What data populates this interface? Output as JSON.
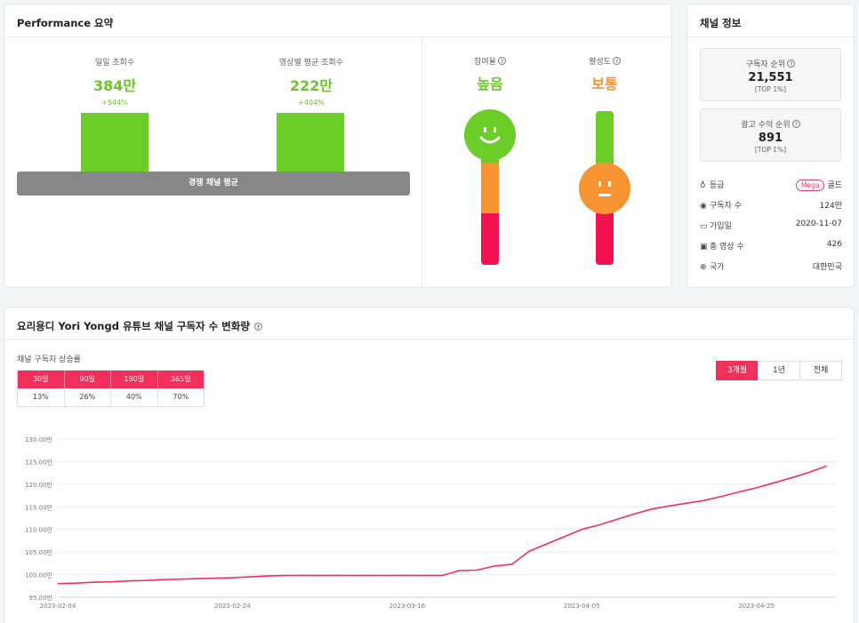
{
  "performance": {
    "title": "Performance 요약",
    "daily_views": {
      "label": "일일 조회수",
      "value": "384만",
      "change": "+544%"
    },
    "avg_views": {
      "label": "영상별 평균 조회수",
      "value": "222만",
      "change": "+404%"
    },
    "baseline_label": "경쟁 채널 평균",
    "engagement": {
      "label": "참여율",
      "value": "높음",
      "level": "high",
      "color": "#6dc42a"
    },
    "activity": {
      "label": "활성도",
      "value": "보통",
      "level": "medium",
      "color": "#f79431"
    },
    "help_icon": "question-circle-icon"
  },
  "channel_info": {
    "title": "채널 정보",
    "subscriber_rank": {
      "label": "구독자 순위",
      "value": "21,551",
      "sub": "[TOP 1%]"
    },
    "ad_rank": {
      "label": "광고 수익 순위",
      "value": "891",
      "sub": "[TOP 1%]"
    },
    "rows": [
      {
        "icon": "medal-icon",
        "label": "등급",
        "badge": "Mega",
        "value": "골드"
      },
      {
        "icon": "user-circle-icon",
        "label": "구독자 수",
        "value": "124만"
      },
      {
        "icon": "calendar-icon",
        "label": "가입일",
        "value": "2020-11-07"
      },
      {
        "icon": "video-library-icon",
        "label": "총 영상 수",
        "value": "426"
      },
      {
        "icon": "globe-icon",
        "label": "국가",
        "value": "대한민국"
      }
    ]
  },
  "growth": {
    "title": "요리용디 Yori Yongd 유튜브 채널 구독자 수 변화량",
    "rate_label": "채널 구독자 상승률",
    "rate_periods": [
      "30일",
      "90일",
      "180일",
      "365일"
    ],
    "rate_values": [
      "13%",
      "26%",
      "40%",
      "70%"
    ],
    "range_buttons": [
      "3개월",
      "1년",
      "전체"
    ],
    "active_range": "3개월"
  },
  "chart_data": {
    "type": "line",
    "title": "",
    "xlabel": "",
    "ylabel": "",
    "ylim": [
      95,
      130
    ],
    "y_ticks": [
      "95.00만",
      "100.00만",
      "105.00만",
      "110.00만",
      "115.00만",
      "120.00만",
      "125.00만",
      "130.00만"
    ],
    "x_ticks": [
      "2023-02-04",
      "2023-02-24",
      "2023-03-16",
      "2023-04-05",
      "2023-04-25"
    ],
    "grid": true,
    "line_color": "#f0305a",
    "x_start": "2023-02-04",
    "x_end": "2023-05-04",
    "series": [
      {
        "x": [
          "2023-02-04",
          "2023-02-06",
          "2023-02-08",
          "2023-02-10",
          "2023-02-12",
          "2023-02-14",
          "2023-02-16",
          "2023-02-18",
          "2023-02-20",
          "2023-02-22",
          "2023-02-24",
          "2023-02-26",
          "2023-02-28",
          "2023-03-02",
          "2023-03-04",
          "2023-03-06",
          "2023-03-08",
          "2023-03-10",
          "2023-03-12",
          "2023-03-14",
          "2023-03-16",
          "2023-03-18",
          "2023-03-20",
          "2023-03-22",
          "2023-03-24",
          "2023-03-26",
          "2023-03-28",
          "2023-03-30",
          "2023-04-01",
          "2023-04-03",
          "2023-04-05",
          "2023-04-07",
          "2023-04-09",
          "2023-04-11",
          "2023-04-13",
          "2023-04-15",
          "2023-04-17",
          "2023-04-19",
          "2023-04-21",
          "2023-04-23",
          "2023-04-25",
          "2023-04-27",
          "2023-04-29",
          "2023-05-01",
          "2023-05-03"
        ],
        "values": [
          98.0,
          98.1,
          98.3,
          98.4,
          98.6,
          98.7,
          98.9,
          99.0,
          99.1,
          99.2,
          99.3,
          99.5,
          99.7,
          99.8,
          99.8,
          99.8,
          99.8,
          99.8,
          99.8,
          99.8,
          99.8,
          99.8,
          99.8,
          100.9,
          101.0,
          101.9,
          102.3,
          105.2,
          106.8,
          108.4,
          110.0,
          111.0,
          112.2,
          113.4,
          114.5,
          115.2,
          115.8,
          116.4,
          117.3,
          118.3,
          119.2,
          120.3,
          121.4,
          122.6,
          124.0
        ]
      }
    ]
  }
}
